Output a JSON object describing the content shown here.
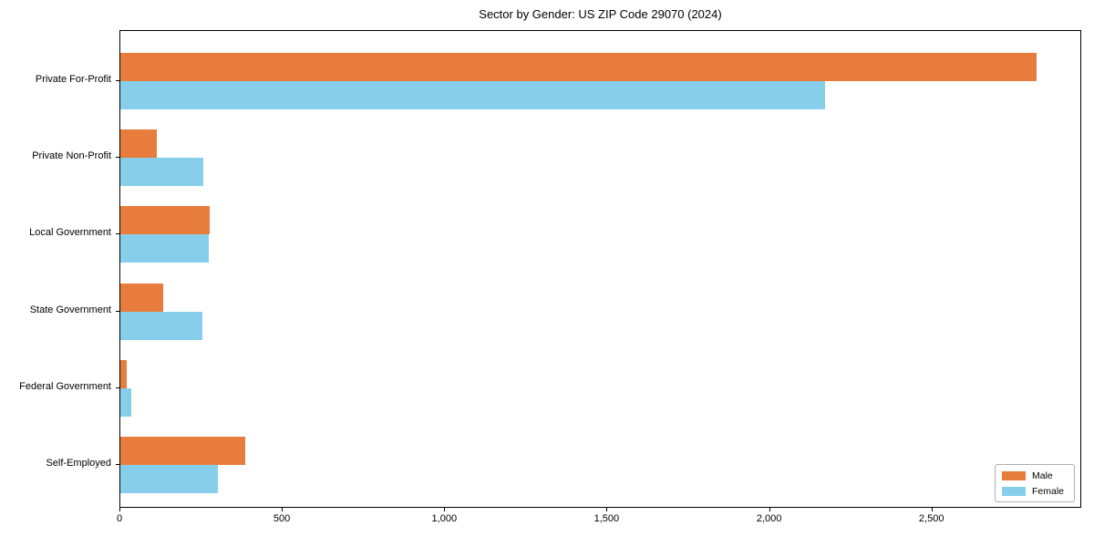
{
  "chart_data": {
    "type": "bar",
    "orientation": "horizontal",
    "title": "Sector by Gender: US ZIP Code 29070 (2024)",
    "categories": [
      "Private For-Profit",
      "Private Non-Profit",
      "Local Government",
      "State Government",
      "Federal Government",
      "Self-Employed"
    ],
    "series": [
      {
        "name": "Male",
        "color": "#E87C3C",
        "values": [
          2820,
          112,
          275,
          132,
          20,
          385
        ]
      },
      {
        "name": "Female",
        "color": "#87CEEB",
        "values": [
          2170,
          255,
          272,
          253,
          33,
          300
        ]
      }
    ],
    "xlabel": "",
    "ylabel": "",
    "xlim": [
      0,
      2961
    ],
    "x_ticks": [
      {
        "value": 0,
        "label": "0"
      },
      {
        "value": 500,
        "label": "500"
      },
      {
        "value": 1000,
        "label": "1,000"
      },
      {
        "value": 1500,
        "label": "1,500"
      },
      {
        "value": 2000,
        "label": "2,000"
      },
      {
        "value": 2500,
        "label": "2,500"
      }
    ],
    "grid": false,
    "legend_position": "lower right",
    "plot_border_color": "#000000",
    "background_color": "#ffffff"
  }
}
